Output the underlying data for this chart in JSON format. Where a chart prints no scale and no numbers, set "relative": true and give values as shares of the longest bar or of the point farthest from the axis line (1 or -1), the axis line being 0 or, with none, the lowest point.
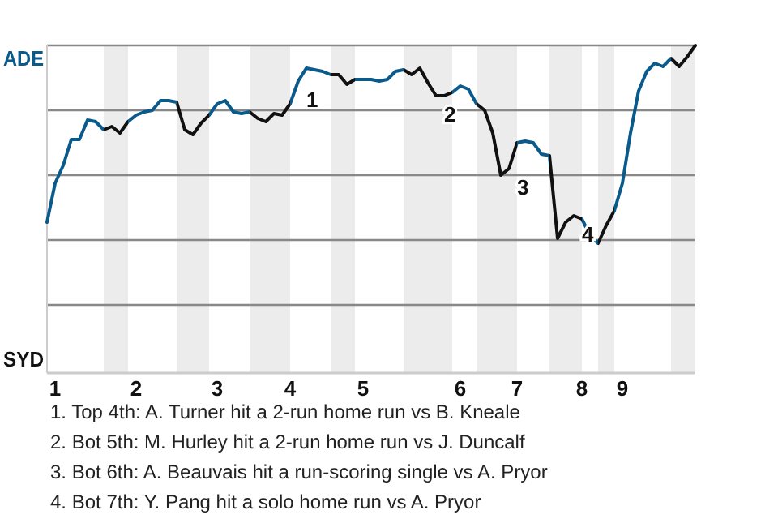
{
  "chart_data": {
    "type": "line",
    "relative": true,
    "grid": "y",
    "line_style": "solid",
    "categories": [
      null,
      "1",
      null,
      null,
      null,
      null,
      null,
      null,
      null,
      null,
      null,
      "2",
      null,
      null,
      null,
      null,
      null,
      null,
      null,
      null,
      null,
      "3",
      null,
      null,
      null,
      null,
      null,
      null,
      null,
      null,
      "4",
      null,
      null,
      null,
      null,
      null,
      null,
      null,
      null,
      "5",
      null,
      null,
      null,
      null,
      null,
      null,
      null,
      null,
      null,
      null,
      null,
      "6",
      null,
      null,
      null,
      null,
      null,
      null,
      "7",
      null,
      null,
      null,
      null,
      null,
      null,
      null,
      "8",
      null,
      null,
      null,
      null,
      "9",
      null,
      null,
      null,
      null,
      null,
      null,
      null,
      null,
      null
    ],
    "series": [
      {
        "color": "#0b5a8c",
        "values": [
          0.455,
          0.575,
          0.63,
          0.71,
          0.71,
          0.77,
          0.765,
          0.74,
          0.75,
          0.73,
          0.765,
          0.785,
          0.795,
          0.8,
          0.83,
          0.83,
          0.825,
          0.74,
          0.725,
          0.76,
          0.785,
          0.82,
          0.83,
          0.795,
          0.79,
          0.795,
          0.775,
          0.765,
          0.79,
          0.785,
          0.82,
          0.89,
          0.93,
          0.925,
          0.92,
          0.91,
          0.91,
          0.88,
          0.895,
          0.895,
          0.895,
          0.89,
          0.895,
          0.92,
          0.925,
          0.91,
          0.93,
          0.885,
          0.845,
          0.845,
          0.855,
          0.875,
          0.865,
          0.82,
          0.8,
          0.73,
          0.6,
          0.62,
          0.7,
          0.705,
          0.7,
          0.665,
          0.66,
          0.405,
          0.455,
          0.475,
          0.465,
          0.415,
          0.39,
          0.445,
          0.49,
          0.575,
          0.73,
          0.86,
          0.92,
          0.945,
          0.935,
          0.96,
          0.935,
          0.965,
          1.0
        ],
        "colors": [
          "#0b5a8c",
          "#0b5a8c",
          "#0b5a8c",
          "#0b5a8c",
          "#0b5a8c",
          "#0b5a8c",
          "#0b5a8c",
          "#111111",
          "#111111",
          "#111111",
          "#0b5a8c",
          "#0b5a8c",
          "#0b5a8c",
          "#0b5a8c",
          "#0b5a8c",
          "#0b5a8c",
          "#111111",
          "#111111",
          "#111111",
          "#111111",
          "#0b5a8c",
          "#0b5a8c",
          "#0b5a8c",
          "#0b5a8c",
          "#0b5a8c",
          "#111111",
          "#111111",
          "#111111",
          "#111111",
          "#111111",
          "#0b5a8c",
          "#0b5a8c",
          "#0b5a8c",
          "#0b5a8c",
          "#0b5a8c",
          "#111111",
          "#111111",
          "#111111",
          "#0b5a8c",
          "#0b5a8c",
          "#0b5a8c",
          "#0b5a8c",
          "#0b5a8c",
          "#0b5a8c",
          "#111111",
          "#111111",
          "#111111",
          "#111111",
          "#111111",
          "#111111",
          "#0b5a8c",
          "#0b5a8c",
          "#0b5a8c",
          "#111111",
          "#111111",
          "#111111",
          "#111111",
          "#111111",
          "#0b5a8c",
          "#0b5a8c",
          "#0b5a8c",
          "#0b5a8c",
          "#111111",
          "#111111",
          "#111111",
          "#111111",
          "#0b5a8c",
          "#0b5a8c",
          "#111111",
          "#111111",
          "#0b5a8c",
          "#0b5a8c",
          "#0b5a8c",
          "#0b5a8c",
          "#0b5a8c",
          "#0b5a8c",
          "#0b5a8c",
          "#111111",
          "#111111",
          "#111111",
          "#111111"
        ]
      }
    ],
    "annotations": [
      "ADE",
      "SYD",
      "1",
      "2",
      "3",
      "4",
      "1. Top 4th: A. Turner hit a 2-run home run vs B. Kneale",
      "2. Bot 5th: M. Hurley hit a 2-run home run vs J. Duncalf",
      "3. Bot 6th: A. Beauvais hit a run-scoring single vs A. Pryor",
      "4. Bot 7th: Y. Pang hit a solo home run vs A. Pryor"
    ]
  }
}
